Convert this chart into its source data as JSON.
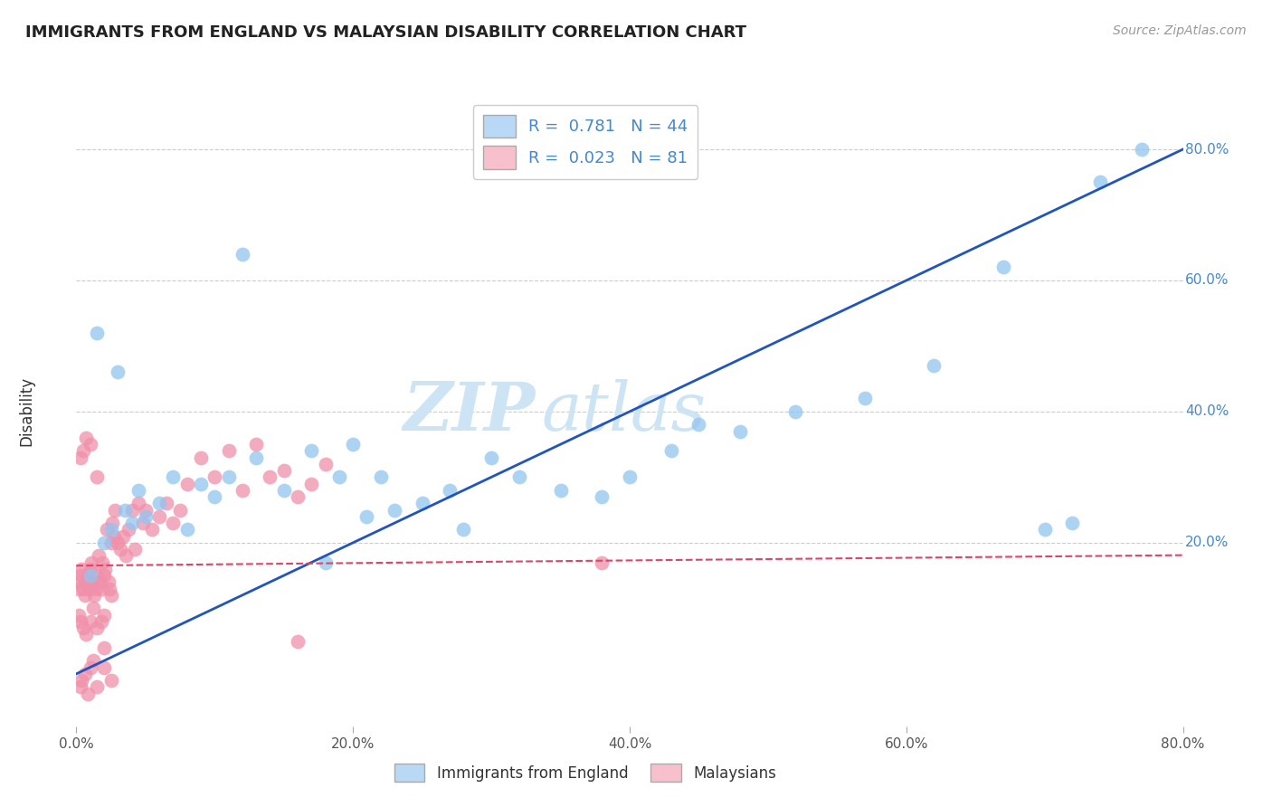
{
  "title": "IMMIGRANTS FROM ENGLAND VS MALAYSIAN DISABILITY CORRELATION CHART",
  "source": "Source: ZipAtlas.com",
  "ylabel": "Disability",
  "xlim": [
    0.0,
    0.8
  ],
  "ylim": [
    -0.08,
    0.88
  ],
  "xticks": [
    0.0,
    0.2,
    0.4,
    0.6,
    0.8
  ],
  "yticks": [
    0.0,
    0.2,
    0.4,
    0.6,
    0.8
  ],
  "xtick_labels": [
    "0.0%",
    "20.0%",
    "40.0%",
    "60.0%",
    "80.0%"
  ],
  "ytick_labels": [
    "",
    "20.0%",
    "40.0%",
    "60.0%",
    "80.0%"
  ],
  "blue_R": 0.781,
  "blue_N": 44,
  "pink_R": 0.023,
  "pink_N": 81,
  "blue_color": "#92c5f0",
  "pink_color": "#f090aa",
  "blue_line_color": "#2255bb",
  "pink_line_color": "#dd4466",
  "grid_color": "#cccccc",
  "bg_color": "#ffffff",
  "watermark_zip": "ZIP",
  "watermark_atlas": "atlas",
  "watermark_color": "#cde4f5",
  "legend_label_blue": "Immigrants from England",
  "legend_label_pink": "Malaysians",
  "blue_line_slope": 1.0,
  "blue_line_intercept": 0.0,
  "pink_line_slope": 0.02,
  "pink_line_intercept": 0.165,
  "blue_scatter_x": [
    0.01,
    0.015,
    0.02,
    0.025,
    0.03,
    0.035,
    0.04,
    0.045,
    0.05,
    0.06,
    0.07,
    0.08,
    0.09,
    0.1,
    0.11,
    0.12,
    0.13,
    0.15,
    0.17,
    0.18,
    0.19,
    0.2,
    0.21,
    0.22,
    0.23,
    0.25,
    0.27,
    0.28,
    0.3,
    0.32,
    0.35,
    0.38,
    0.4,
    0.43,
    0.45,
    0.48,
    0.52,
    0.57,
    0.62,
    0.67,
    0.7,
    0.72,
    0.74,
    0.77
  ],
  "blue_scatter_y": [
    0.15,
    0.52,
    0.2,
    0.22,
    0.46,
    0.25,
    0.23,
    0.28,
    0.24,
    0.26,
    0.3,
    0.22,
    0.29,
    0.27,
    0.3,
    0.64,
    0.33,
    0.28,
    0.34,
    0.17,
    0.3,
    0.35,
    0.24,
    0.3,
    0.25,
    0.26,
    0.28,
    0.22,
    0.33,
    0.3,
    0.28,
    0.27,
    0.3,
    0.34,
    0.38,
    0.37,
    0.4,
    0.42,
    0.47,
    0.62,
    0.22,
    0.23,
    0.75,
    0.8
  ],
  "pink_scatter_x": [
    0.001,
    0.002,
    0.003,
    0.004,
    0.005,
    0.006,
    0.007,
    0.008,
    0.009,
    0.01,
    0.011,
    0.012,
    0.013,
    0.014,
    0.015,
    0.016,
    0.017,
    0.018,
    0.019,
    0.02,
    0.021,
    0.022,
    0.023,
    0.024,
    0.025,
    0.026,
    0.027,
    0.028,
    0.03,
    0.032,
    0.034,
    0.036,
    0.038,
    0.04,
    0.042,
    0.045,
    0.048,
    0.05,
    0.055,
    0.06,
    0.065,
    0.07,
    0.075,
    0.08,
    0.09,
    0.1,
    0.11,
    0.12,
    0.13,
    0.14,
    0.15,
    0.16,
    0.17,
    0.18,
    0.002,
    0.003,
    0.005,
    0.007,
    0.01,
    0.012,
    0.015,
    0.018,
    0.02,
    0.003,
    0.004,
    0.006,
    0.008,
    0.01,
    0.012,
    0.015,
    0.02,
    0.025,
    0.003,
    0.005,
    0.007,
    0.01,
    0.015,
    0.38,
    0.02,
    0.025,
    0.16
  ],
  "pink_scatter_y": [
    0.14,
    0.13,
    0.15,
    0.16,
    0.13,
    0.12,
    0.14,
    0.15,
    0.13,
    0.16,
    0.17,
    0.14,
    0.12,
    0.13,
    0.15,
    0.18,
    0.14,
    0.13,
    0.17,
    0.15,
    0.16,
    0.22,
    0.14,
    0.13,
    0.2,
    0.23,
    0.21,
    0.25,
    0.2,
    0.19,
    0.21,
    0.18,
    0.22,
    0.25,
    0.19,
    0.26,
    0.23,
    0.25,
    0.22,
    0.24,
    0.26,
    0.23,
    0.25,
    0.29,
    0.33,
    0.3,
    0.34,
    0.28,
    0.35,
    0.3,
    0.31,
    0.27,
    0.29,
    0.32,
    0.09,
    0.08,
    0.07,
    0.06,
    0.08,
    0.1,
    0.07,
    0.08,
    0.09,
    -0.02,
    -0.01,
    0.0,
    -0.03,
    0.01,
    0.02,
    -0.02,
    0.01,
    -0.01,
    0.33,
    0.34,
    0.36,
    0.35,
    0.3,
    0.17,
    0.04,
    0.12,
    0.05
  ]
}
